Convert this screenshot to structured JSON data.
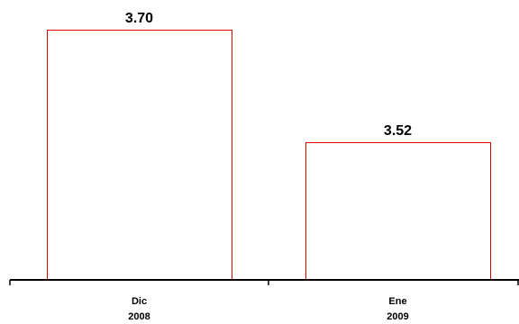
{
  "chart_data": {
    "type": "bar",
    "categories": [
      {
        "line1": "Dic",
        "line2": "2008"
      },
      {
        "line1": "Ene",
        "line2": "2009"
      }
    ],
    "values": [
      3.7,
      3.52
    ],
    "data_labels": [
      "3.70",
      "3.52"
    ],
    "title": "",
    "xlabel": "",
    "ylabel": "",
    "ylim_note": "y axis not shown; bars scaled from hidden baseline",
    "grid": false,
    "legend": "none",
    "colors": {
      "bar_stroke": "#e00000",
      "bar_fill": "#ffffff",
      "axis": "#000000"
    }
  }
}
